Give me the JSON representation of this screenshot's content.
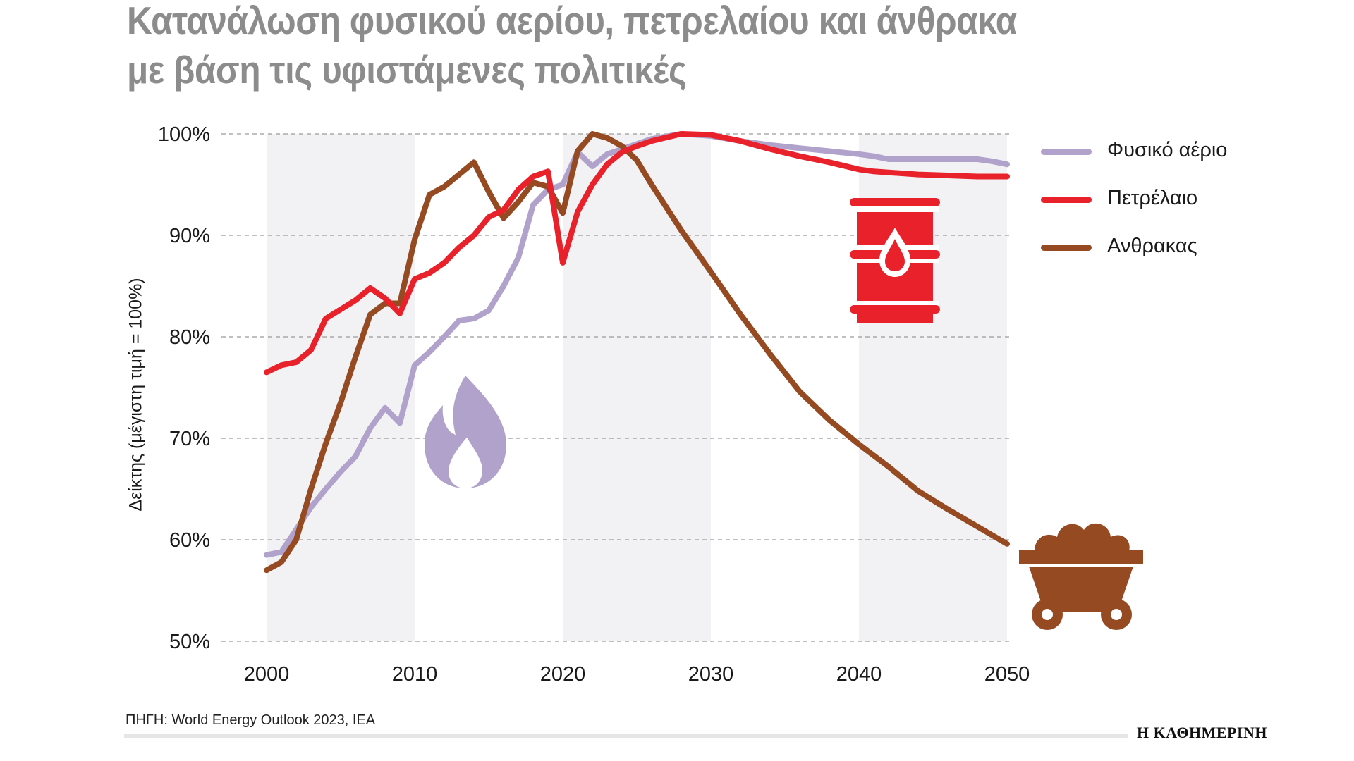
{
  "title": {
    "line1": "Κατανάλωση φυσικού αερίου, πετρελαίου και άνθρακα",
    "line2": "με βάση τις υφιστάμενες πολιτικές"
  },
  "source": "ΠΗΓΗ: World Energy Outlook 2023, IEA",
  "brand": "Η ΚΑΘΗΜΕΡΙΝΗ",
  "colors": {
    "gas": "#b0a2cb",
    "oil": "#e8212b",
    "coal": "#964a22",
    "band": "#f2f2f4",
    "grid": "#9a9a9a",
    "title": "#8c8c8c"
  },
  "icons": {
    "gas": "flame-icon",
    "oil": "oil-barrel-icon",
    "coal": "coal-cart-icon"
  },
  "chart_data": {
    "type": "line",
    "title": "Κατανάλωση φυσικού αερίου, πετρελαίου και άνθρακα με βάση τις υφιστάμενες πολιτικές",
    "xlabel": "",
    "ylabel": "Δείκτης (μέγιστη τιμή = 100%)",
    "xlim": [
      2000,
      2050
    ],
    "ylim": [
      50,
      100
    ],
    "x_ticks": [
      2000,
      2010,
      2020,
      2030,
      2040,
      2050
    ],
    "y_ticks": [
      50,
      60,
      70,
      80,
      90,
      100
    ],
    "y_tick_labels": [
      "50%",
      "60%",
      "70%",
      "80%",
      "90%",
      "100%"
    ],
    "grid": "horizontal dashed",
    "shaded_decades": [
      [
        2000,
        2010
      ],
      [
        2020,
        2030
      ],
      [
        2040,
        2050
      ]
    ],
    "legend_position": "right",
    "series": [
      {
        "name": "Φυσικό αέριο",
        "key": "gas",
        "x": [
          2000,
          2001,
          2002,
          2003,
          2004,
          2005,
          2006,
          2007,
          2008,
          2009,
          2010,
          2011,
          2012,
          2013,
          2014,
          2015,
          2016,
          2017,
          2018,
          2019,
          2020,
          2021,
          2022,
          2023,
          2024,
          2025,
          2026,
          2028,
          2030,
          2032,
          2034,
          2036,
          2038,
          2040,
          2041,
          2042,
          2044,
          2046,
          2048,
          2049,
          2050
        ],
        "values": [
          58.5,
          58.8,
          61,
          63.2,
          65,
          66.7,
          68.2,
          71,
          73,
          71.5,
          77.2,
          78.5,
          80,
          81.6,
          81.8,
          82.6,
          85,
          87.8,
          93,
          94.5,
          95,
          98.2,
          96.8,
          98,
          98.5,
          99,
          99.5,
          100,
          99.8,
          99.3,
          98.9,
          98.6,
          98.3,
          98,
          97.8,
          97.5,
          97.5,
          97.5,
          97.5,
          97.3,
          97
        ]
      },
      {
        "name": "Πετρέλαιο",
        "key": "oil",
        "x": [
          2000,
          2001,
          2002,
          2003,
          2004,
          2005,
          2006,
          2007,
          2008,
          2009,
          2010,
          2011,
          2012,
          2013,
          2014,
          2015,
          2016,
          2017,
          2018,
          2019,
          2020,
          2021,
          2022,
          2023,
          2024,
          2025,
          2026,
          2028,
          2030,
          2032,
          2034,
          2036,
          2038,
          2040,
          2041,
          2042,
          2044,
          2046,
          2048,
          2050
        ],
        "values": [
          76.5,
          77.2,
          77.5,
          78.7,
          81.8,
          82.7,
          83.6,
          84.8,
          83.8,
          82.3,
          85.7,
          86.3,
          87.3,
          88.8,
          90,
          91.8,
          92.5,
          94.5,
          95.8,
          96.3,
          87.3,
          92.3,
          95,
          97,
          98.2,
          98.8,
          99.3,
          100,
          99.9,
          99.3,
          98.5,
          97.8,
          97.2,
          96.5,
          96.3,
          96.2,
          96,
          95.9,
          95.8,
          95.8
        ]
      },
      {
        "name": "Ανθρακας",
        "key": "coal",
        "x": [
          2000,
          2001,
          2002,
          2003,
          2004,
          2005,
          2006,
          2007,
          2008,
          2009,
          2010,
          2011,
          2012,
          2013,
          2014,
          2015,
          2016,
          2017,
          2018,
          2019,
          2020,
          2021,
          2022,
          2023,
          2024,
          2025,
          2026,
          2028,
          2030,
          2032,
          2034,
          2036,
          2038,
          2040,
          2042,
          2044,
          2046,
          2048,
          2050
        ],
        "values": [
          57,
          57.8,
          60,
          65,
          69.5,
          73.5,
          78,
          82.2,
          83.3,
          83.3,
          89.6,
          94,
          94.8,
          96,
          97.2,
          94.3,
          91.7,
          93.3,
          95.2,
          94.8,
          92.2,
          98.3,
          100,
          99.6,
          98.8,
          97.4,
          95,
          90.5,
          86.4,
          82.2,
          78.3,
          74.6,
          71.8,
          69.4,
          67.2,
          64.8,
          63,
          61.3,
          59.6
        ]
      }
    ]
  }
}
